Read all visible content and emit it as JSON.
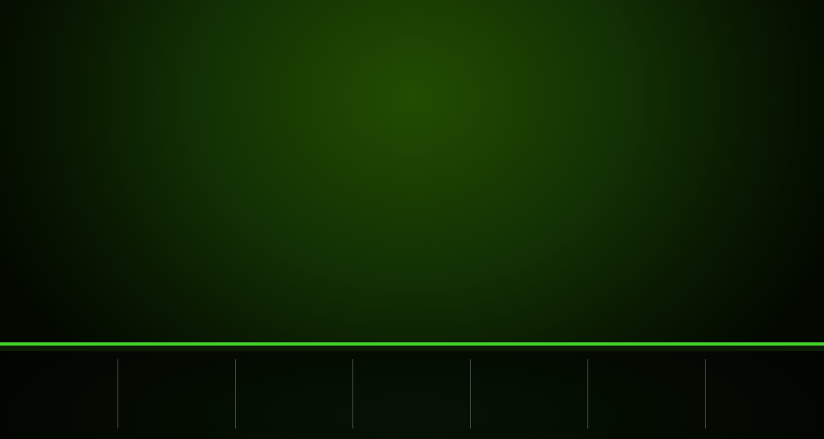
{
  "colors": {
    "accent": "#43d22a",
    "hero_center": "#214d01",
    "hero_edge": "#030900",
    "bar_background": "#020401",
    "divider": "#4a4a4a"
  },
  "bottom_bar": {
    "slot_count": 7,
    "divider_count": 6
  }
}
